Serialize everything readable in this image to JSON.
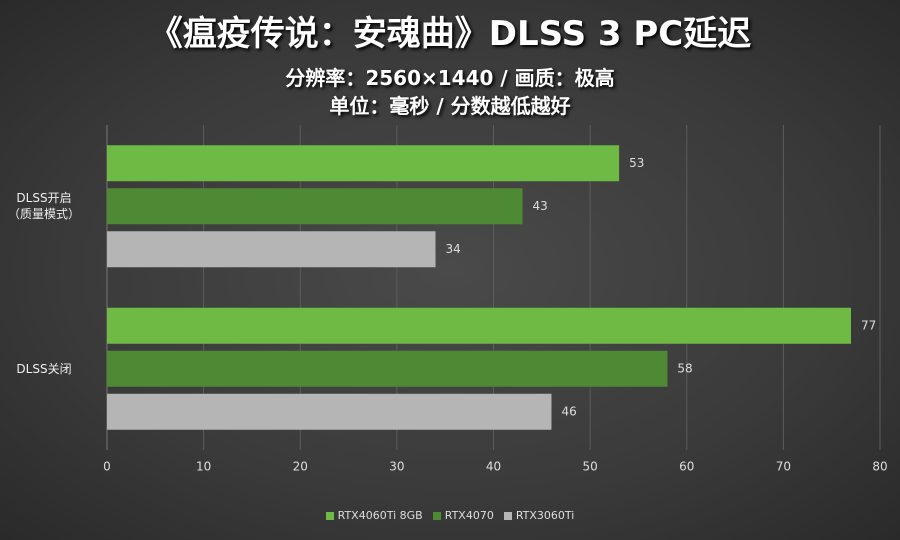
{
  "chart_data": {
    "type": "hbar",
    "title": "《瘟疫传说：安魂曲》DLSS 3 PC延迟",
    "subtitle": "分辨率：2560×1440 / 画质：极高",
    "note": "单位：毫秒 / 分数越低越好",
    "categories": [
      "DLSS开启\n（质量模式）",
      "DLSS关闭"
    ],
    "series": [
      {
        "name": "RTX4060Ti 8GB",
        "color": "#6fba44",
        "values": [
          53,
          77
        ]
      },
      {
        "name": "RTX4070",
        "color": "#4e8a33",
        "values": [
          43,
          58
        ]
      },
      {
        "name": "RTX3060Ti",
        "color": "#b5b5b5",
        "values": [
          34,
          46
        ]
      }
    ],
    "xlim": [
      0,
      80
    ],
    "xticks": [
      0,
      10,
      20,
      30,
      40,
      50,
      60,
      70,
      80
    ],
    "grid": true,
    "legend": "bottom"
  }
}
